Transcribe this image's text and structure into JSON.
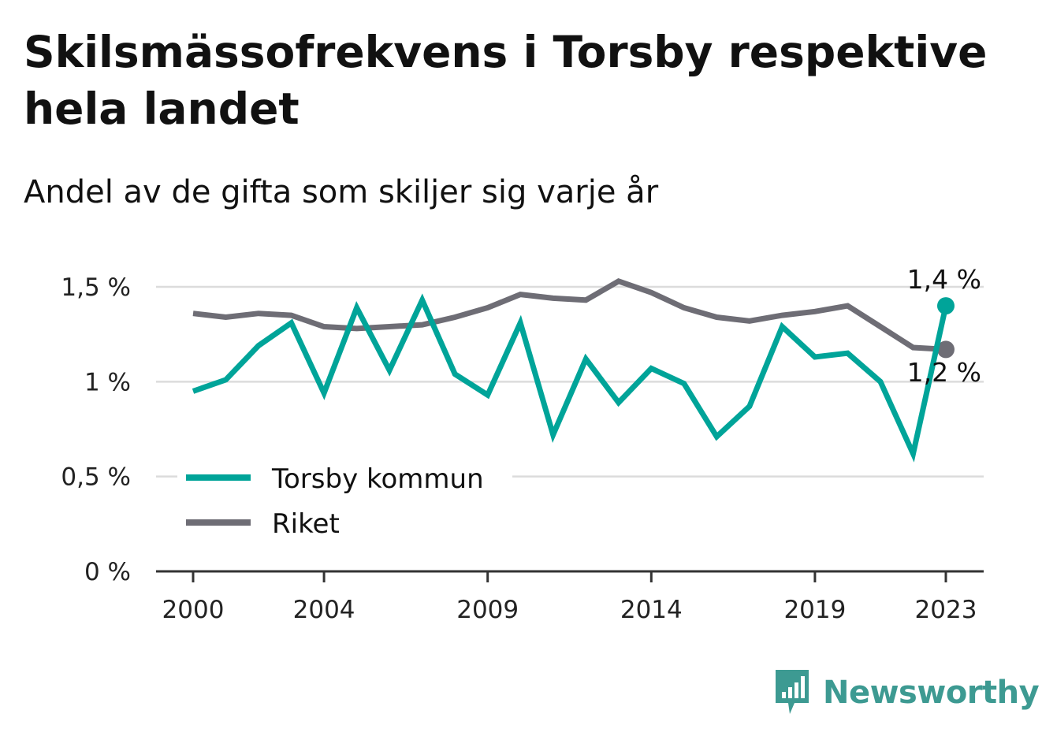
{
  "colors": {
    "torsby": "#00a499",
    "riket": "#6e6d75",
    "grid": "#dcdcdc",
    "axis": "#333333",
    "brand": "#3d9a92"
  },
  "brand": {
    "name": "Newsworthy",
    "icon": "bar-chart-speech-bubble-icon"
  },
  "chart_data": {
    "type": "line",
    "title": "Skilsmässofrekvens i Torsby respektive hela landet",
    "subtitle": "Andel av de gifta som skiljer sig varje år",
    "x": [
      2000,
      2001,
      2002,
      2003,
      2004,
      2005,
      2006,
      2007,
      2008,
      2009,
      2010,
      2011,
      2012,
      2013,
      2014,
      2015,
      2016,
      2017,
      2018,
      2019,
      2020,
      2021,
      2022,
      2023
    ],
    "x_ticks": [
      2000,
      2004,
      2009,
      2014,
      2019,
      2023
    ],
    "y_ticks": [
      {
        "value": 0,
        "label": "0 %"
      },
      {
        "value": 0.5,
        "label": "0,5 %"
      },
      {
        "value": 1,
        "label": "1 %"
      },
      {
        "value": 1.5,
        "label": "1,5 %"
      }
    ],
    "ylim": [
      0,
      1.6
    ],
    "grid": true,
    "legend_position": "bottom-left",
    "series": [
      {
        "name": "Torsby kommun",
        "key": "torsby",
        "values": [
          0.95,
          1.01,
          1.19,
          1.31,
          0.94,
          1.39,
          1.06,
          1.43,
          1.04,
          0.93,
          1.31,
          0.72,
          1.12,
          0.89,
          1.07,
          0.99,
          0.71,
          0.87,
          1.29,
          1.13,
          1.15,
          1.0,
          0.62,
          1.4
        ],
        "end_label": "1,4 %"
      },
      {
        "name": "Riket",
        "key": "riket",
        "values": [
          1.36,
          1.34,
          1.36,
          1.35,
          1.29,
          1.28,
          1.29,
          1.3,
          1.34,
          1.39,
          1.46,
          1.44,
          1.43,
          1.53,
          1.47,
          1.39,
          1.34,
          1.32,
          1.35,
          1.37,
          1.4,
          1.29,
          1.18,
          1.17
        ],
        "end_label": "1,2 %"
      }
    ]
  }
}
